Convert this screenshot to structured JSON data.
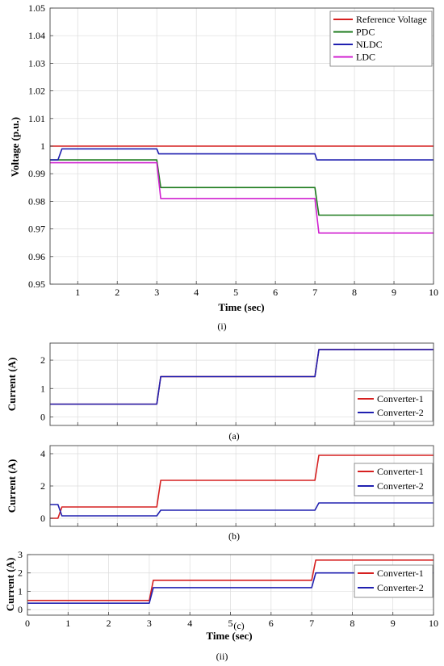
{
  "chart_data": [
    {
      "id": "i",
      "type": "line",
      "caption": "(i)",
      "xlabel": "Time (sec)",
      "ylabel": "Voltage (p.u.)",
      "xlim": [
        0.3,
        10
      ],
      "ylim": [
        0.95,
        1.05
      ],
      "xticks": [
        1,
        2,
        3,
        4,
        5,
        6,
        7,
        8,
        9,
        10
      ],
      "yticks": [
        0.95,
        0.96,
        0.97,
        0.98,
        0.99,
        1,
        1.01,
        1.02,
        1.03,
        1.04,
        1.05
      ],
      "ytick_labels": [
        "0.95",
        "0.96",
        "0.97",
        "0.98",
        "0.99",
        "1",
        "1.01",
        "1.02",
        "1.03",
        "1.04",
        "1.05"
      ],
      "grid": true,
      "legend": "top-right",
      "series": [
        {
          "name": "Reference Voltage",
          "color": "#d62020",
          "x": [
            0.3,
            10
          ],
          "y": [
            1.0,
            1.0
          ]
        },
        {
          "name": "PDC",
          "color": "#1e7b1e",
          "x": [
            0.3,
            3.0,
            3.1,
            7.0,
            7.1,
            10
          ],
          "y": [
            0.995,
            0.995,
            0.985,
            0.985,
            0.975,
            0.975
          ]
        },
        {
          "name": "NLDC",
          "color": "#2020b0",
          "x": [
            0.3,
            0.5,
            0.6,
            3.0,
            3.05,
            7.0,
            7.05,
            10
          ],
          "y": [
            0.995,
            0.995,
            0.999,
            0.999,
            0.9972,
            0.9972,
            0.995,
            0.995
          ]
        },
        {
          "name": "LDC",
          "color": "#d020d0",
          "x": [
            0.3,
            3.0,
            3.1,
            7.0,
            7.1,
            10
          ],
          "y": [
            0.994,
            0.994,
            0.981,
            0.981,
            0.9685,
            0.9685
          ]
        }
      ]
    },
    {
      "id": "a",
      "type": "line",
      "caption": "(a)",
      "xlabel": "",
      "ylabel": "Current (A)",
      "xlim": [
        0.3,
        10
      ],
      "ylim": [
        -0.3,
        2.6
      ],
      "xticks": [],
      "yticks": [
        0,
        1,
        2
      ],
      "ytick_labels": [
        "0",
        "1",
        "2"
      ],
      "grid": true,
      "legend": "bottom-right",
      "series": [
        {
          "name": "Converter-1",
          "color": "#d62020",
          "x": [
            0.3,
            3.0,
            3.1,
            7.0,
            7.1,
            10
          ],
          "y": [
            0.45,
            0.45,
            1.42,
            1.42,
            2.37,
            2.37
          ]
        },
        {
          "name": "Converter-2",
          "color": "#2020b0",
          "x": [
            0.3,
            3.0,
            3.1,
            7.0,
            7.1,
            10
          ],
          "y": [
            0.45,
            0.45,
            1.42,
            1.42,
            2.37,
            2.37
          ]
        }
      ]
    },
    {
      "id": "b",
      "type": "line",
      "caption": "(b)",
      "xlabel": "",
      "ylabel": "Current (A)",
      "xlim": [
        0.3,
        10
      ],
      "ylim": [
        -0.5,
        4.5
      ],
      "xticks": [],
      "yticks": [
        0,
        2,
        4
      ],
      "ytick_labels": [
        "0",
        "2",
        "4"
      ],
      "grid": true,
      "legend": "right",
      "series": [
        {
          "name": "Converter-1",
          "color": "#d62020",
          "x": [
            0.3,
            0.5,
            0.6,
            3.0,
            3.1,
            7.0,
            7.1,
            10
          ],
          "y": [
            0.0,
            0.0,
            0.7,
            0.7,
            2.35,
            2.35,
            3.9,
            3.9
          ]
        },
        {
          "name": "Converter-2",
          "color": "#2020b0",
          "x": [
            0.3,
            0.5,
            0.6,
            3.0,
            3.1,
            7.0,
            7.1,
            10
          ],
          "y": [
            0.85,
            0.85,
            0.15,
            0.15,
            0.5,
            0.5,
            0.95,
            0.95
          ]
        }
      ]
    },
    {
      "id": "c",
      "type": "line",
      "caption": "(c)",
      "xlabel": "Time (sec)",
      "ylabel": "Current (A)",
      "xlim": [
        0,
        10
      ],
      "ylim": [
        -0.3,
        3
      ],
      "xticks": [
        0,
        1,
        2,
        3,
        4,
        5,
        6,
        7,
        8,
        9,
        10
      ],
      "yticks": [
        0,
        1,
        2,
        3
      ],
      "ytick_labels": [
        "0",
        "1",
        "2",
        "3"
      ],
      "grid": true,
      "legend": "right",
      "series": [
        {
          "name": "Converter-1",
          "color": "#d62020",
          "x": [
            0,
            3.0,
            3.1,
            7.0,
            7.1,
            10
          ],
          "y": [
            0.5,
            0.5,
            1.6,
            1.6,
            2.7,
            2.7
          ]
        },
        {
          "name": "Converter-2",
          "color": "#2020b0",
          "x": [
            0,
            3.0,
            3.1,
            7.0,
            7.1,
            10
          ],
          "y": [
            0.35,
            0.35,
            1.2,
            1.2,
            2.0,
            2.0
          ]
        }
      ]
    }
  ],
  "figure_caption": "(ii)"
}
